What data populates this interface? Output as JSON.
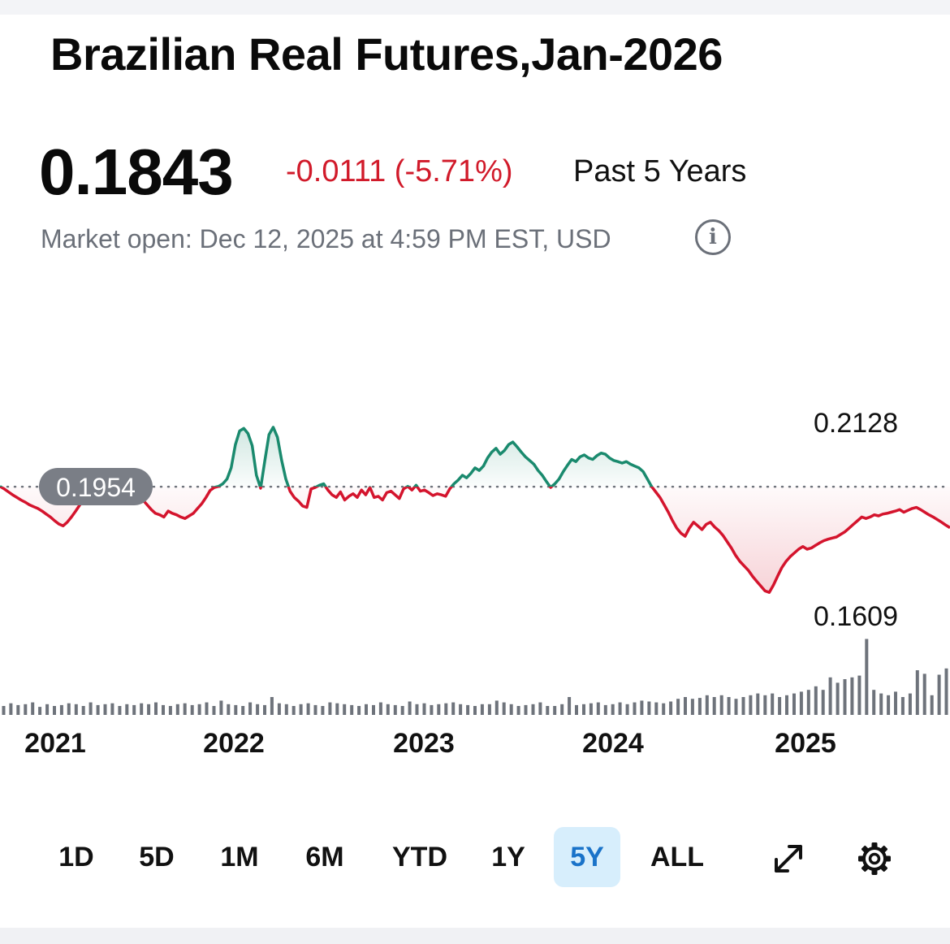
{
  "header": {
    "title": "Brazilian Real Futures,Jan-2026",
    "price": "0.1843",
    "change": "-0.0111 (-5.71%)",
    "period": "Past 5 Years",
    "status": "Market open: Dec 12, 2025 at 4:59 PM EST, USD",
    "info_icon": "info-circle-icon"
  },
  "chart_data": {
    "type": "line",
    "title": "",
    "xlabel": "",
    "ylabel": "",
    "x_tick_labels": [
      "2021",
      "2022",
      "2023",
      "2024",
      "2025"
    ],
    "ylim": [
      0.1609,
      0.2128
    ],
    "reference_value": 0.1954,
    "reference_label": "0.1954",
    "high_label": "0.2128",
    "low_label": "0.1609",
    "colors": {
      "above": "#1a8a6e",
      "below": "#d4142d",
      "volume": "#6e737b"
    },
    "series": [
      {
        "values": [
          0.1955,
          0.1948,
          0.194,
          0.1932,
          0.1925,
          0.1918,
          0.1912,
          0.1905,
          0.19,
          0.1895,
          0.1888,
          0.188,
          0.1872,
          0.1862,
          0.1853,
          0.1848,
          0.1858,
          0.1872,
          0.1888,
          0.1905,
          0.1922,
          0.194,
          0.1958,
          0.1972,
          0.196,
          0.1948,
          0.1952,
          0.1966,
          0.1978,
          0.1965,
          0.1955,
          0.1948,
          0.194,
          0.1932,
          0.1918,
          0.1905,
          0.1892,
          0.1882,
          0.1878,
          0.1872,
          0.1888,
          0.1882,
          0.1878,
          0.1872,
          0.1868,
          0.1875,
          0.1882,
          0.1895,
          0.1908,
          0.1925,
          0.1944,
          0.1952,
          0.1955,
          0.1962,
          0.1975,
          0.2005,
          0.2068,
          0.2105,
          0.2112,
          0.2098,
          0.2065,
          0.1985,
          0.195,
          0.2025,
          0.2095,
          0.2115,
          0.2088,
          0.2025,
          0.1975,
          0.1942,
          0.1925,
          0.1915,
          0.1902,
          0.1898,
          0.1948,
          0.1952,
          0.1958,
          0.1962,
          0.1945,
          0.1932,
          0.1925,
          0.194,
          0.1918,
          0.1928,
          0.1935,
          0.1925,
          0.1945,
          0.1932,
          0.1952,
          0.1925,
          0.1928,
          0.1918,
          0.1938,
          0.1942,
          0.1932,
          0.1922,
          0.1948,
          0.1955,
          0.1945,
          0.1958,
          0.1942,
          0.1945,
          0.1938,
          0.193,
          0.1935,
          0.1932,
          0.1928,
          0.1948,
          0.1962,
          0.1972,
          0.1985,
          0.1978,
          0.199,
          0.2005,
          0.1998,
          0.201,
          0.2032,
          0.2048,
          0.2058,
          0.2042,
          0.2052,
          0.2068,
          0.2075,
          0.2062,
          0.2048,
          0.2035,
          0.2025,
          0.2015,
          0.1998,
          0.1985,
          0.1968,
          0.1952,
          0.1962,
          0.1975,
          0.1995,
          0.2012,
          0.2028,
          0.2022,
          0.2035,
          0.204,
          0.2032,
          0.2028,
          0.2038,
          0.2045,
          0.2042,
          0.2032,
          0.2025,
          0.2022,
          0.2018,
          0.2022,
          0.2015,
          0.201,
          0.2005,
          0.1995,
          0.1975,
          0.1955,
          0.194,
          0.1925,
          0.1905,
          0.1885,
          0.1862,
          0.1842,
          0.1828,
          0.182,
          0.1842,
          0.1858,
          0.1848,
          0.1838,
          0.1852,
          0.1858,
          0.1845,
          0.1835,
          0.1822,
          0.1805,
          0.1788,
          0.1768,
          0.1752,
          0.174,
          0.1728,
          0.1712,
          0.1698,
          0.1685,
          0.1672,
          0.1668,
          0.1688,
          0.1712,
          0.1735,
          0.1752,
          0.1765,
          0.1775,
          0.1785,
          0.1792,
          0.1785,
          0.1788,
          0.1795,
          0.1802,
          0.1808,
          0.1812,
          0.1815,
          0.1818,
          0.1825,
          0.1832,
          0.1842,
          0.1852,
          0.1862,
          0.1872,
          0.1868,
          0.1872,
          0.1878,
          0.1875,
          0.188,
          0.1882,
          0.1885,
          0.1888,
          0.1892,
          0.1885,
          0.189,
          0.1895,
          0.1898,
          0.1892,
          0.1885,
          0.1878,
          0.1872,
          0.1865,
          0.1858,
          0.185,
          0.1843
        ]
      }
    ],
    "volume": [
      0.1,
      0.13,
      0.11,
      0.12,
      0.14,
      0.09,
      0.12,
      0.1,
      0.11,
      0.13,
      0.12,
      0.1,
      0.14,
      0.11,
      0.12,
      0.13,
      0.1,
      0.12,
      0.11,
      0.13,
      0.12,
      0.14,
      0.11,
      0.1,
      0.12,
      0.13,
      0.11,
      0.12,
      0.14,
      0.1,
      0.16,
      0.12,
      0.11,
      0.1,
      0.14,
      0.12,
      0.11,
      0.2,
      0.13,
      0.12,
      0.1,
      0.12,
      0.13,
      0.11,
      0.1,
      0.14,
      0.13,
      0.12,
      0.11,
      0.1,
      0.12,
      0.11,
      0.14,
      0.12,
      0.11,
      0.1,
      0.15,
      0.12,
      0.13,
      0.11,
      0.12,
      0.13,
      0.14,
      0.12,
      0.11,
      0.1,
      0.12,
      0.12,
      0.16,
      0.14,
      0.12,
      0.1,
      0.11,
      0.12,
      0.14,
      0.1,
      0.1,
      0.12,
      0.2,
      0.11,
      0.12,
      0.13,
      0.14,
      0.11,
      0.12,
      0.14,
      0.12,
      0.14,
      0.16,
      0.15,
      0.14,
      0.13,
      0.15,
      0.18,
      0.2,
      0.18,
      0.19,
      0.22,
      0.2,
      0.22,
      0.2,
      0.18,
      0.2,
      0.22,
      0.24,
      0.22,
      0.24,
      0.2,
      0.22,
      0.24,
      0.26,
      0.28,
      0.32,
      0.28,
      0.42,
      0.36,
      0.4,
      0.42,
      0.44,
      0.85,
      0.28,
      0.24,
      0.22,
      0.26,
      0.2,
      0.24,
      0.5,
      0.46,
      0.22,
      0.45,
      0.52
    ]
  },
  "range_buttons": [
    "1D",
    "5D",
    "1M",
    "6M",
    "YTD",
    "1Y",
    "5Y",
    "ALL"
  ],
  "active_range": "5Y",
  "tools": [
    "expand-icon",
    "gear-icon"
  ]
}
